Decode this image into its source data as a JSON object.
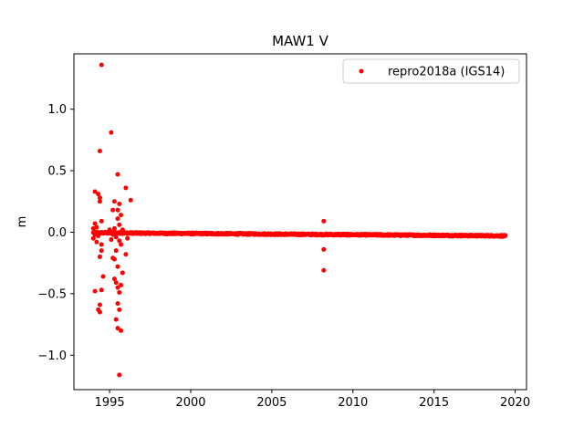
{
  "chart_data": {
    "type": "scatter",
    "title": "MAW1 V",
    "xlabel": "",
    "ylabel": "m",
    "xlim": [
      1992.8,
      2020.7
    ],
    "ylim": [
      -1.28,
      1.45
    ],
    "x_ticks": [
      1995,
      2000,
      2005,
      2010,
      2015,
      2020
    ],
    "x_tick_labels": [
      "1995",
      "2000",
      "2005",
      "2010",
      "2015",
      "2020"
    ],
    "y_ticks": [
      -1.0,
      -0.5,
      0.0,
      0.5,
      1.0
    ],
    "y_tick_labels": [
      "−1.0",
      "−0.5",
      "0.0",
      "0.5",
      "1.0"
    ],
    "grid": false,
    "legend": {
      "position": "top-right",
      "entries": [
        {
          "label": "repro2018a (IGS14)",
          "color": "#ff0000",
          "marker": "circle"
        }
      ]
    },
    "series": [
      {
        "name": "repro2018a (IGS14)",
        "color": "#ff0000",
        "trend": {
          "x_start": 1994.0,
          "x_end": 2019.4,
          "y_start": -0.005,
          "y_end": -0.03,
          "n_points": 900,
          "noise": 0.006
        },
        "points": [
          [
            1994.5,
            1.36
          ],
          [
            1995.1,
            0.81
          ],
          [
            1994.4,
            0.66
          ],
          [
            1995.5,
            0.47
          ],
          [
            1996.0,
            0.36
          ],
          [
            1994.1,
            0.33
          ],
          [
            1994.3,
            0.31
          ],
          [
            1994.4,
            0.28
          ],
          [
            1994.4,
            0.25
          ],
          [
            1995.3,
            0.25
          ],
          [
            1996.3,
            0.26
          ],
          [
            1995.6,
            0.23
          ],
          [
            1995.2,
            0.18
          ],
          [
            1995.5,
            0.18
          ],
          [
            1995.7,
            0.14
          ],
          [
            1995.5,
            0.11
          ],
          [
            1994.5,
            0.09
          ],
          [
            1994.1,
            0.07
          ],
          [
            1995.6,
            0.06
          ],
          [
            1994.0,
            0.03
          ],
          [
            1994.2,
            0.04
          ],
          [
            1995.0,
            0.02
          ],
          [
            1995.3,
            0.03
          ],
          [
            1995.8,
            0.02
          ],
          [
            1994.1,
            -0.02
          ],
          [
            1994.3,
            -0.03
          ],
          [
            1995.2,
            -0.02
          ],
          [
            1995.4,
            -0.04
          ],
          [
            1994.0,
            -0.05
          ],
          [
            1994.2,
            -0.08
          ],
          [
            1994.5,
            -0.1
          ],
          [
            1995.1,
            -0.06
          ],
          [
            1995.6,
            -0.07
          ],
          [
            1996.1,
            -0.05
          ],
          [
            1994.5,
            -0.15
          ],
          [
            1995.7,
            -0.1
          ],
          [
            1995.4,
            -0.15
          ],
          [
            1994.4,
            -0.2
          ],
          [
            1995.2,
            -0.21
          ],
          [
            1995.3,
            -0.22
          ],
          [
            1995.5,
            -0.28
          ],
          [
            1996.0,
            -0.18
          ],
          [
            1994.6,
            -0.36
          ],
          [
            1995.8,
            -0.33
          ],
          [
            1995.3,
            -0.38
          ],
          [
            1995.4,
            -0.41
          ],
          [
            1995.7,
            -0.43
          ],
          [
            1995.5,
            -0.45
          ],
          [
            1994.1,
            -0.48
          ],
          [
            1994.5,
            -0.47
          ],
          [
            1995.6,
            -0.49
          ],
          [
            1994.4,
            -0.59
          ],
          [
            1995.5,
            -0.58
          ],
          [
            1994.3,
            -0.63
          ],
          [
            1994.4,
            -0.65
          ],
          [
            1995.6,
            -0.63
          ],
          [
            1995.4,
            -0.71
          ],
          [
            1995.5,
            -0.78
          ],
          [
            1995.7,
            -0.8
          ],
          [
            1995.6,
            -1.16
          ],
          [
            2008.2,
            0.09
          ],
          [
            2008.2,
            -0.14
          ],
          [
            2008.2,
            -0.31
          ]
        ]
      }
    ]
  }
}
